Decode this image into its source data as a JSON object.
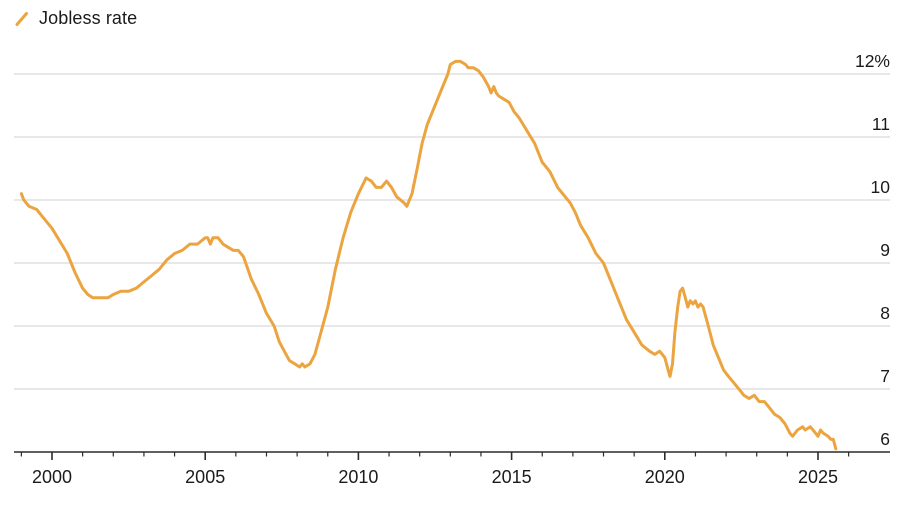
{
  "legend": {
    "label": "Jobless rate",
    "marker_icon": "orange-slash"
  },
  "chart_data": {
    "type": "line",
    "title": "",
    "series_name": "Jobless rate",
    "x_unit": "year",
    "xlim": [
      1998.76,
      2027.2
    ],
    "ylim": [
      6,
      12
    ],
    "grid": "horizontal",
    "legend_position": "top-left",
    "y_axis_side": "right",
    "colors": {
      "line": "#EBA43F",
      "grid": "#D9D9D9",
      "axis": "#2B2B2B",
      "text": "#1B1B1B",
      "background": "#FFFFFF"
    },
    "y_ticks": [
      {
        "value": 12,
        "label": "12%"
      },
      {
        "value": 11,
        "label": "11"
      },
      {
        "value": 10,
        "label": "10"
      },
      {
        "value": 9,
        "label": "9"
      },
      {
        "value": 8,
        "label": "8"
      },
      {
        "value": 7,
        "label": "7"
      },
      {
        "value": 6,
        "label": "6"
      }
    ],
    "x_tick_years": [
      1999,
      2000,
      2001,
      2002,
      2003,
      2004,
      2005,
      2006,
      2007,
      2008,
      2009,
      2010,
      2011,
      2012,
      2013,
      2014,
      2015,
      2016,
      2017,
      2018,
      2019,
      2020,
      2021,
      2022,
      2023,
      2024,
      2025,
      2026
    ],
    "x_label_years": [
      2000,
      2005,
      2010,
      2015,
      2020,
      2025
    ],
    "points": [
      [
        1999.0,
        10.1
      ],
      [
        1999.08,
        10.0
      ],
      [
        1999.25,
        9.9
      ],
      [
        1999.5,
        9.85
      ],
      [
        1999.75,
        9.7
      ],
      [
        2000.0,
        9.55
      ],
      [
        2000.25,
        9.35
      ],
      [
        2000.5,
        9.15
      ],
      [
        2000.75,
        8.85
      ],
      [
        2001.0,
        8.6
      ],
      [
        2001.17,
        8.5
      ],
      [
        2001.33,
        8.45
      ],
      [
        2001.58,
        8.45
      ],
      [
        2001.83,
        8.45
      ],
      [
        2002.0,
        8.5
      ],
      [
        2002.25,
        8.55
      ],
      [
        2002.5,
        8.55
      ],
      [
        2002.75,
        8.6
      ],
      [
        2003.0,
        8.7
      ],
      [
        2003.25,
        8.8
      ],
      [
        2003.5,
        8.9
      ],
      [
        2003.75,
        9.05
      ],
      [
        2004.0,
        9.15
      ],
      [
        2004.25,
        9.2
      ],
      [
        2004.5,
        9.3
      ],
      [
        2004.75,
        9.3
      ],
      [
        2005.0,
        9.4
      ],
      [
        2005.08,
        9.4
      ],
      [
        2005.17,
        9.3
      ],
      [
        2005.25,
        9.4
      ],
      [
        2005.42,
        9.4
      ],
      [
        2005.58,
        9.3
      ],
      [
        2005.75,
        9.25
      ],
      [
        2005.92,
        9.2
      ],
      [
        2006.08,
        9.2
      ],
      [
        2006.25,
        9.1
      ],
      [
        2006.5,
        8.75
      ],
      [
        2006.75,
        8.5
      ],
      [
        2007.0,
        8.2
      ],
      [
        2007.25,
        8.0
      ],
      [
        2007.42,
        7.75
      ],
      [
        2007.58,
        7.6
      ],
      [
        2007.75,
        7.45
      ],
      [
        2007.92,
        7.4
      ],
      [
        2008.08,
        7.35
      ],
      [
        2008.17,
        7.4
      ],
      [
        2008.25,
        7.35
      ],
      [
        2008.42,
        7.4
      ],
      [
        2008.58,
        7.55
      ],
      [
        2008.75,
        7.85
      ],
      [
        2009.0,
        8.3
      ],
      [
        2009.25,
        8.9
      ],
      [
        2009.5,
        9.4
      ],
      [
        2009.75,
        9.8
      ],
      [
        2010.0,
        10.1
      ],
      [
        2010.25,
        10.35
      ],
      [
        2010.42,
        10.3
      ],
      [
        2010.58,
        10.2
      ],
      [
        2010.75,
        10.2
      ],
      [
        2010.92,
        10.3
      ],
      [
        2011.08,
        10.2
      ],
      [
        2011.25,
        10.05
      ],
      [
        2011.5,
        9.95
      ],
      [
        2011.58,
        9.9
      ],
      [
        2011.75,
        10.1
      ],
      [
        2011.92,
        10.5
      ],
      [
        2012.08,
        10.9
      ],
      [
        2012.25,
        11.2
      ],
      [
        2012.5,
        11.5
      ],
      [
        2012.75,
        11.8
      ],
      [
        2012.92,
        12.0
      ],
      [
        2013.0,
        12.15
      ],
      [
        2013.17,
        12.2
      ],
      [
        2013.33,
        12.2
      ],
      [
        2013.5,
        12.15
      ],
      [
        2013.58,
        12.1
      ],
      [
        2013.75,
        12.1
      ],
      [
        2013.92,
        12.05
      ],
      [
        2014.08,
        11.95
      ],
      [
        2014.25,
        11.8
      ],
      [
        2014.33,
        11.7
      ],
      [
        2014.42,
        11.8
      ],
      [
        2014.5,
        11.7
      ],
      [
        2014.58,
        11.65
      ],
      [
        2014.75,
        11.6
      ],
      [
        2014.92,
        11.55
      ],
      [
        2015.08,
        11.4
      ],
      [
        2015.25,
        11.3
      ],
      [
        2015.5,
        11.1
      ],
      [
        2015.75,
        10.9
      ],
      [
        2016.0,
        10.6
      ],
      [
        2016.25,
        10.45
      ],
      [
        2016.5,
        10.2
      ],
      [
        2016.75,
        10.05
      ],
      [
        2016.92,
        9.95
      ],
      [
        2017.08,
        9.8
      ],
      [
        2017.25,
        9.6
      ],
      [
        2017.5,
        9.4
      ],
      [
        2017.75,
        9.15
      ],
      [
        2018.0,
        9.0
      ],
      [
        2018.25,
        8.7
      ],
      [
        2018.5,
        8.4
      ],
      [
        2018.75,
        8.1
      ],
      [
        2019.0,
        7.9
      ],
      [
        2019.25,
        7.7
      ],
      [
        2019.5,
        7.6
      ],
      [
        2019.67,
        7.55
      ],
      [
        2019.83,
        7.6
      ],
      [
        2020.0,
        7.5
      ],
      [
        2020.08,
        7.35
      ],
      [
        2020.17,
        7.2
      ],
      [
        2020.25,
        7.4
      ],
      [
        2020.33,
        7.9
      ],
      [
        2020.42,
        8.3
      ],
      [
        2020.5,
        8.55
      ],
      [
        2020.58,
        8.6
      ],
      [
        2020.67,
        8.45
      ],
      [
        2020.75,
        8.3
      ],
      [
        2020.83,
        8.4
      ],
      [
        2020.92,
        8.35
      ],
      [
        2021.0,
        8.4
      ],
      [
        2021.08,
        8.3
      ],
      [
        2021.17,
        8.35
      ],
      [
        2021.25,
        8.3
      ],
      [
        2021.42,
        8.0
      ],
      [
        2021.58,
        7.7
      ],
      [
        2021.75,
        7.5
      ],
      [
        2021.92,
        7.3
      ],
      [
        2022.08,
        7.2
      ],
      [
        2022.25,
        7.1
      ],
      [
        2022.42,
        7.0
      ],
      [
        2022.58,
        6.9
      ],
      [
        2022.75,
        6.85
      ],
      [
        2022.92,
        6.9
      ],
      [
        2023.08,
        6.8
      ],
      [
        2023.25,
        6.8
      ],
      [
        2023.42,
        6.7
      ],
      [
        2023.58,
        6.6
      ],
      [
        2023.75,
        6.55
      ],
      [
        2023.92,
        6.45
      ],
      [
        2024.08,
        6.3
      ],
      [
        2024.17,
        6.25
      ],
      [
        2024.33,
        6.35
      ],
      [
        2024.5,
        6.4
      ],
      [
        2024.58,
        6.35
      ],
      [
        2024.75,
        6.4
      ],
      [
        2024.92,
        6.3
      ],
      [
        2025.0,
        6.25
      ],
      [
        2025.08,
        6.35
      ],
      [
        2025.17,
        6.3
      ],
      [
        2025.33,
        6.25
      ],
      [
        2025.42,
        6.2
      ],
      [
        2025.5,
        6.2
      ],
      [
        2025.58,
        6.05
      ]
    ]
  }
}
